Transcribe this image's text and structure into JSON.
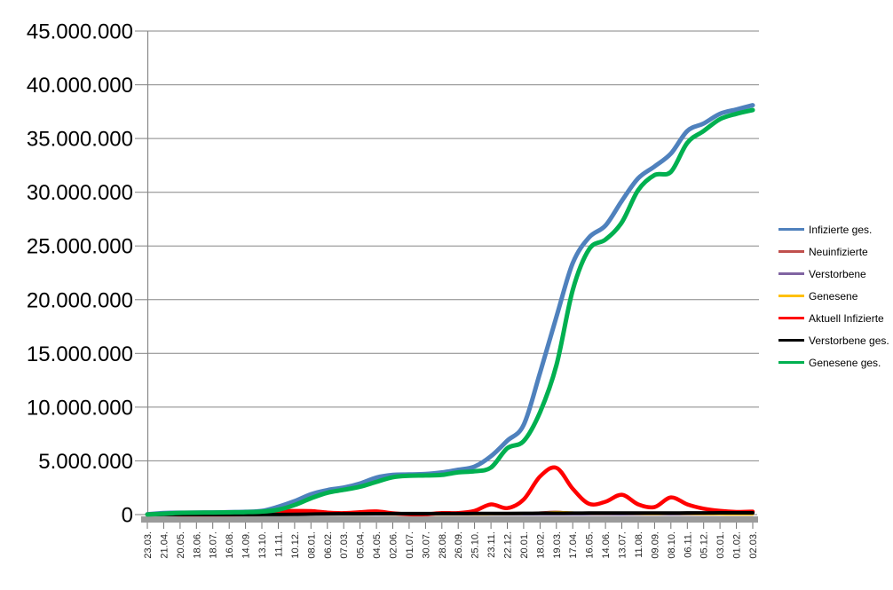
{
  "chart_data": {
    "type": "line",
    "title": "",
    "xlabel": "",
    "ylabel": "",
    "grid": true,
    "legend_position": "right",
    "x_axis": {
      "label_rotation_deg": 90,
      "categories": [
        "23.03.",
        "21.04.",
        "20.05.",
        "18.06.",
        "18.07.",
        "16.08.",
        "14.09.",
        "13.10.",
        "11.11.",
        "10.12.",
        "08.01.",
        "06.02.",
        "07.03.",
        "05.04.",
        "04.05.",
        "02.06.",
        "01.07.",
        "30.07.",
        "28.08.",
        "26.09.",
        "25.10.",
        "23.11.",
        "22.12.",
        "20.01.",
        "18.02.",
        "19.03.",
        "17.04.",
        "16.05.",
        "14.06.",
        "13.07.",
        "11.08.",
        "09.09.",
        "08.10.",
        "06.11.",
        "05.12.",
        "03.01.",
        "01.02.",
        "02.03."
      ]
    },
    "y_axis": {
      "min": 0,
      "max": 45000000,
      "step": 5000000,
      "tick_labels_top_to_bottom": [
        "45.000.000",
        "40.000.000",
        "35.000.000",
        "30.000.000",
        "25.000.000",
        "20.000.000",
        "15.000.000",
        "10.000.000",
        "5.000.000",
        "0"
      ]
    },
    "series": [
      {
        "name": "Infizierte ges.",
        "color": "#4F81BD",
        "values": [
          30000,
          145000,
          177000,
          190000,
          202000,
          225000,
          260000,
          335000,
          730000,
          1250000,
          1890000,
          2280000,
          2510000,
          2890000,
          3440000,
          3690000,
          3730000,
          3770000,
          3920000,
          4170000,
          4470000,
          5430000,
          6880000,
          8350000,
          13200000,
          18400000,
          23400000,
          25800000,
          26900000,
          29200000,
          31300000,
          32400000,
          33600000,
          35700000,
          36400000,
          37300000,
          37700000,
          38100000
        ]
      },
      {
        "name": "Neuinfizierte",
        "color": "#C0504D",
        "values": [
          4000,
          2000,
          500,
          300,
          400,
          1000,
          1500,
          5000,
          19000,
          22000,
          18000,
          9000,
          9000,
          15000,
          13000,
          4000,
          800,
          2000,
          8000,
          7000,
          12000,
          45000,
          40000,
          90000,
          200000,
          270000,
          150000,
          60000,
          90000,
          120000,
          50000,
          40000,
          100000,
          50000,
          30000,
          15000,
          10000,
          10000
        ]
      },
      {
        "name": "Verstorbene",
        "color": "#8064A2",
        "values": [
          200,
          1500,
          600,
          200,
          100,
          100,
          100,
          200,
          600,
          1200,
          2000,
          1500,
          800,
          600,
          700,
          400,
          200,
          100,
          100,
          100,
          200,
          500,
          1000,
          1000,
          700,
          600,
          500,
          400,
          300,
          300,
          300,
          300,
          300,
          400,
          500,
          600,
          500,
          400
        ]
      },
      {
        "name": "Genesene",
        "color": "#FFC000",
        "values": [
          2000,
          15000,
          8000,
          2000,
          1000,
          1500,
          2000,
          5000,
          12000,
          20000,
          20000,
          12000,
          8000,
          12000,
          14000,
          7000,
          2000,
          1500,
          5000,
          6000,
          8000,
          25000,
          45000,
          70000,
          150000,
          240000,
          200000,
          90000,
          80000,
          110000,
          60000,
          40000,
          90000,
          60000,
          30000,
          15000,
          10000,
          8000
        ]
      },
      {
        "name": "Aktuell Infizierte",
        "color": "#FF0000",
        "values": [
          25000,
          50000,
          12000,
          6000,
          6000,
          12000,
          20000,
          50000,
          270000,
          340000,
          330000,
          190000,
          140000,
          230000,
          300000,
          120000,
          30000,
          35000,
          140000,
          150000,
          350000,
          950000,
          600000,
          1400000,
          3550000,
          4350000,
          2400000,
          1000000,
          1200000,
          1850000,
          950000,
          700000,
          1600000,
          950000,
          550000,
          350000,
          250000,
          280000
        ]
      },
      {
        "name": "Verstorbene ges.",
        "color": "#000000",
        "values": [
          300,
          5000,
          8100,
          8800,
          9100,
          9200,
          9400,
          9700,
          12000,
          21000,
          39000,
          61000,
          72000,
          77000,
          84000,
          89000,
          91000,
          91600,
          92100,
          93000,
          95200,
          99600,
          108000,
          116000,
          121000,
          126000,
          132000,
          137400,
          139800,
          142000,
          144800,
          147800,
          149900,
          153000,
          157100,
          162100,
          165900,
          168000
        ]
      },
      {
        "name": "Genesene ges.",
        "color": "#00B050",
        "values": [
          5000,
          85000,
          160000,
          175000,
          190000,
          210000,
          230000,
          280000,
          450000,
          890000,
          1520000,
          2030000,
          2300000,
          2590000,
          3050000,
          3480000,
          3610000,
          3640000,
          3690000,
          3930000,
          4030000,
          4380000,
          6180000,
          6840000,
          9530000,
          13900000,
          20900000,
          24700000,
          25600000,
          27200000,
          30200000,
          31600000,
          31900000,
          34600000,
          35700000,
          36800000,
          37300000,
          37650000
        ]
      }
    ]
  },
  "colors": {
    "gridline": "#868686",
    "axis_line": "#868686",
    "axis_band": "#9B9B9B",
    "y_tick": "#808080",
    "x_tick": "#707070",
    "label_text": "#000000"
  }
}
